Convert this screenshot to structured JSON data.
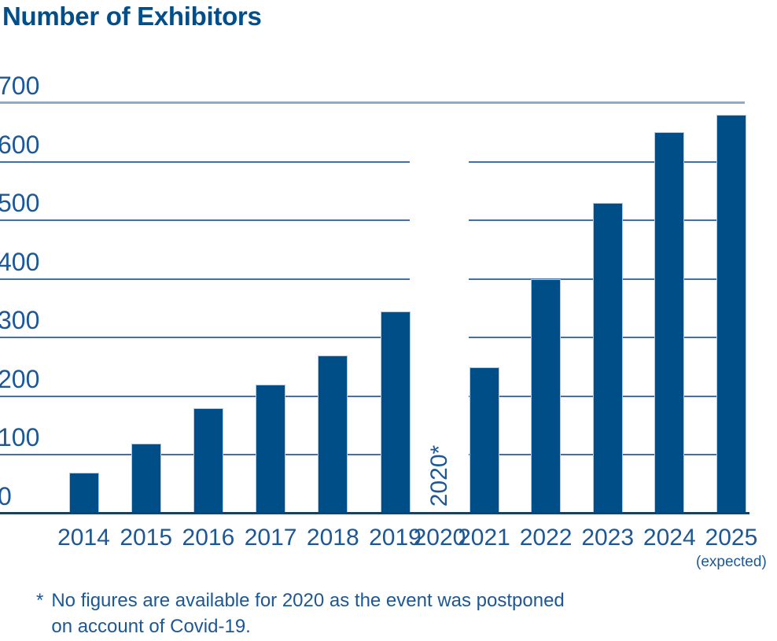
{
  "title": "Number of Exhibitors",
  "colors": {
    "title": "#004f8a",
    "bar": "#004e88",
    "bar_edge": "#b3c7dd",
    "axis_text": "#1c5796",
    "gridline": "#4470aa",
    "top_gridline": "#8fa9ca",
    "baseline": "#01477c"
  },
  "chart_data": {
    "type": "bar",
    "title": "Number of Exhibitors",
    "categories": [
      "2014",
      "2015",
      "2016",
      "2017",
      "2018",
      "2019",
      "2020",
      "2021",
      "2022",
      "2023",
      "2024",
      "2025"
    ],
    "values": [
      70,
      120,
      180,
      220,
      270,
      345,
      null,
      250,
      400,
      530,
      650,
      680
    ],
    "yticks": [
      0,
      100,
      200,
      300,
      400,
      500,
      600,
      700
    ],
    "ylim": [
      0,
      700
    ],
    "xlabel": "",
    "ylabel": "",
    "grid": "horizontal gridlines every 100, with a gap at the empty 2020 slot",
    "legend": "none",
    "missing": {
      "category": "2020",
      "label": "2020*"
    },
    "expected_note": {
      "category": "2025",
      "label": "(expected)"
    }
  },
  "footnote": {
    "marker": "*",
    "lines": [
      "No figures are available for 2020 as the event was postponed",
      "on account of Covid-19."
    ]
  }
}
